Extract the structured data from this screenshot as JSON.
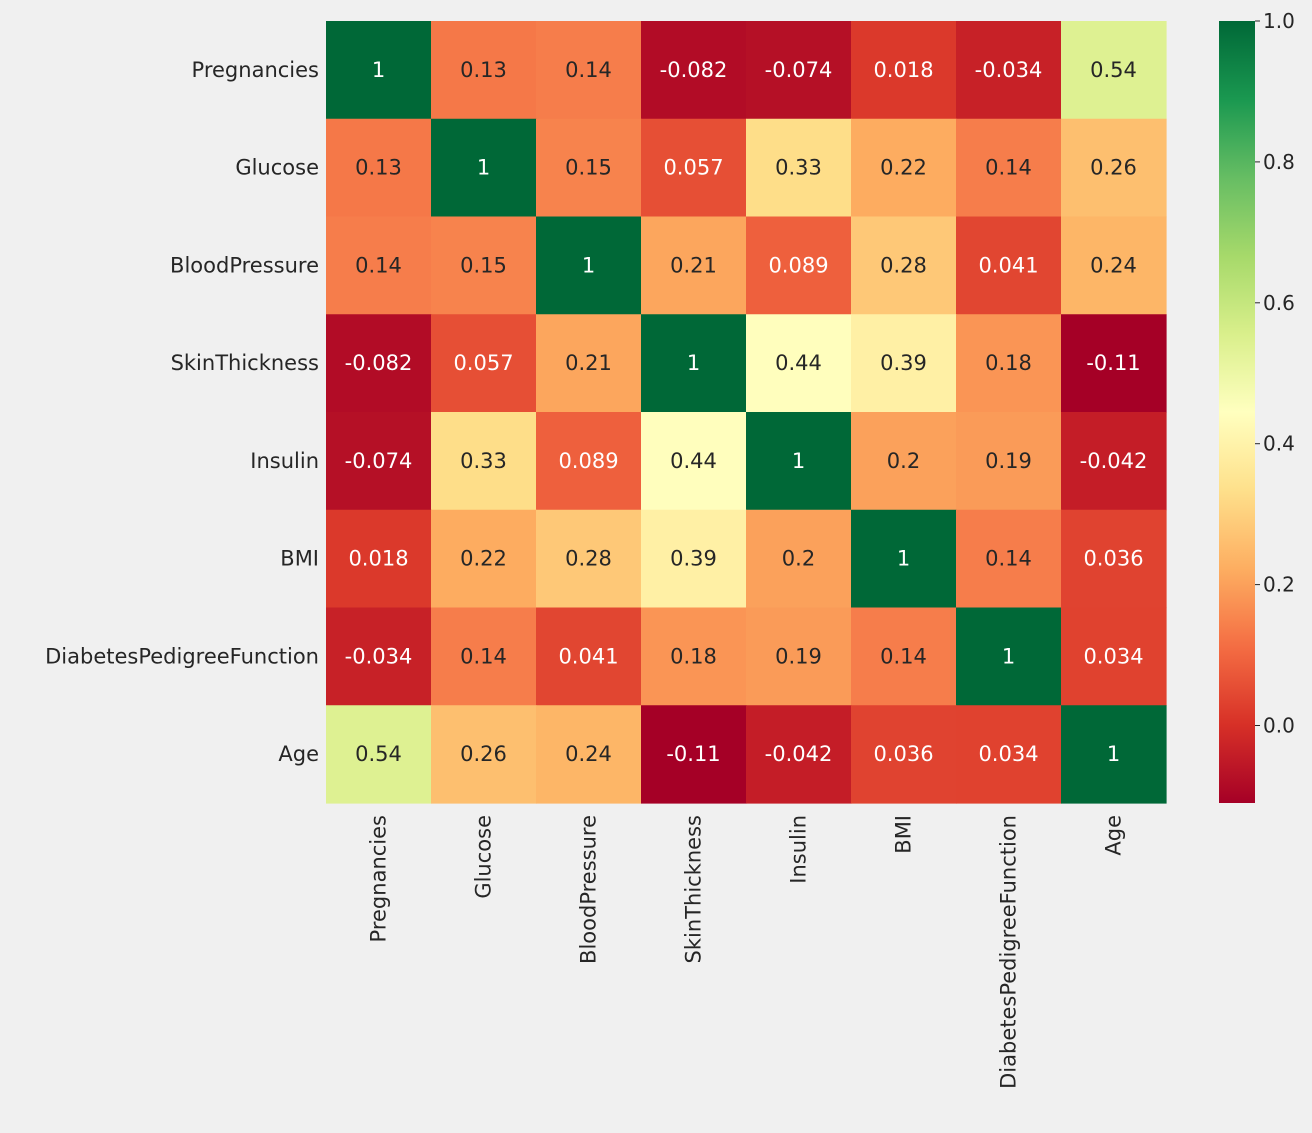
{
  "chart_data": {
    "type": "heatmap",
    "title": "",
    "xlabel": "",
    "ylabel": "",
    "rows": [
      "Pregnancies",
      "Glucose",
      "BloodPressure",
      "SkinThickness",
      "Insulin",
      "BMI",
      "DiabetesPedigreeFunction",
      "Age"
    ],
    "columns": [
      "Pregnancies",
      "Glucose",
      "BloodPressure",
      "SkinThickness",
      "Insulin",
      "BMI",
      "DiabetesPedigreeFunction",
      "Age"
    ],
    "values": [
      [
        1,
        0.13,
        0.14,
        -0.082,
        -0.074,
        0.018,
        -0.034,
        0.54
      ],
      [
        0.13,
        1,
        0.15,
        0.057,
        0.33,
        0.22,
        0.14,
        0.26
      ],
      [
        0.14,
        0.15,
        1,
        0.21,
        0.089,
        0.28,
        0.041,
        0.24
      ],
      [
        -0.082,
        0.057,
        0.21,
        1,
        0.44,
        0.39,
        0.18,
        -0.11
      ],
      [
        -0.074,
        0.33,
        0.089,
        0.44,
        1,
        0.2,
        0.19,
        -0.042
      ],
      [
        0.018,
        0.22,
        0.28,
        0.39,
        0.2,
        1,
        0.14,
        0.036
      ],
      [
        -0.034,
        0.14,
        0.041,
        0.18,
        0.19,
        0.14,
        1,
        0.034
      ],
      [
        0.54,
        0.26,
        0.24,
        -0.11,
        -0.042,
        0.036,
        0.034,
        1
      ]
    ],
    "labels": [
      [
        "1",
        "0.13",
        "0.14",
        "-0.082",
        "-0.074",
        "0.018",
        "-0.034",
        "0.54"
      ],
      [
        "0.13",
        "1",
        "0.15",
        "0.057",
        "0.33",
        "0.22",
        "0.14",
        "0.26"
      ],
      [
        "0.14",
        "0.15",
        "1",
        "0.21",
        "0.089",
        "0.28",
        "0.041",
        "0.24"
      ],
      [
        "-0.082",
        "0.057",
        "0.21",
        "1",
        "0.44",
        "0.39",
        "0.18",
        "-0.11"
      ],
      [
        "-0.074",
        "0.33",
        "0.089",
        "0.44",
        "1",
        "0.2",
        "0.19",
        "-0.042"
      ],
      [
        "0.018",
        "0.22",
        "0.28",
        "0.39",
        "0.2",
        "1",
        "0.14",
        "0.036"
      ],
      [
        "-0.034",
        "0.14",
        "0.041",
        "0.18",
        "0.19",
        "0.14",
        "1",
        "0.034"
      ],
      [
        "0.54",
        "0.26",
        "0.24",
        "-0.11",
        "-0.042",
        "0.036",
        "0.034",
        "1"
      ]
    ],
    "colorscale": "RdYlGn",
    "vmin": -0.11,
    "vmax": 1,
    "colorbar": {
      "ticks": [
        1.0,
        0.8,
        0.6,
        0.4,
        0.2,
        0.0
      ],
      "tick_labels": [
        "1.0",
        "0.8",
        "0.6",
        "0.4",
        "0.2",
        "0.0"
      ]
    },
    "grid": false,
    "legend": "colorbar right"
  }
}
